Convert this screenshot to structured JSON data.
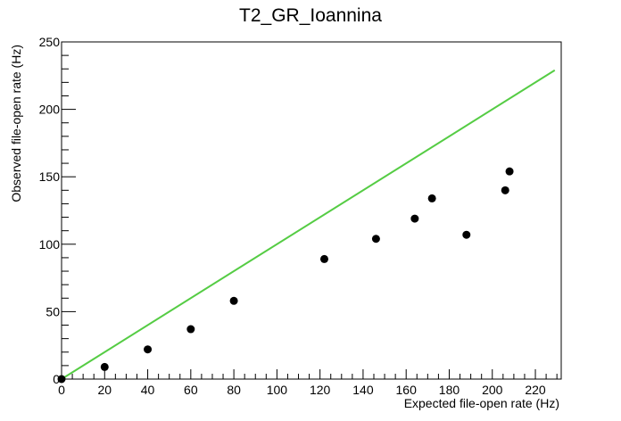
{
  "chart_data": {
    "type": "scatter",
    "title": "T2_GR_Ioannina",
    "xlabel": "Expected file-open rate (Hz)",
    "ylabel": "Observed file-open rate (Hz)",
    "xlim": [
      0,
      232
    ],
    "ylim": [
      0,
      250
    ],
    "x_ticks": [
      0,
      20,
      40,
      60,
      80,
      100,
      120,
      140,
      160,
      180,
      200,
      220
    ],
    "y_ticks": [
      0,
      50,
      100,
      150,
      200,
      250
    ],
    "grid": false,
    "series": [
      {
        "values": [
          {
            "x": 0,
            "y": 0
          },
          {
            "x": 20,
            "y": 9
          },
          {
            "x": 40,
            "y": 22
          },
          {
            "x": 60,
            "y": 37
          },
          {
            "x": 80,
            "y": 58
          },
          {
            "x": 122,
            "y": 89
          },
          {
            "x": 146,
            "y": 104
          },
          {
            "x": 164,
            "y": 119
          },
          {
            "x": 172,
            "y": 134
          },
          {
            "x": 188,
            "y": 107
          },
          {
            "x": 206,
            "y": 140
          },
          {
            "x": 208,
            "y": 154
          }
        ],
        "color": "#000000",
        "marker": "filled-circle"
      }
    ],
    "reference_line": {
      "from": {
        "x": 0,
        "y": 0
      },
      "to": {
        "x": 229,
        "y": 229
      },
      "color": "#55cc44"
    }
  }
}
